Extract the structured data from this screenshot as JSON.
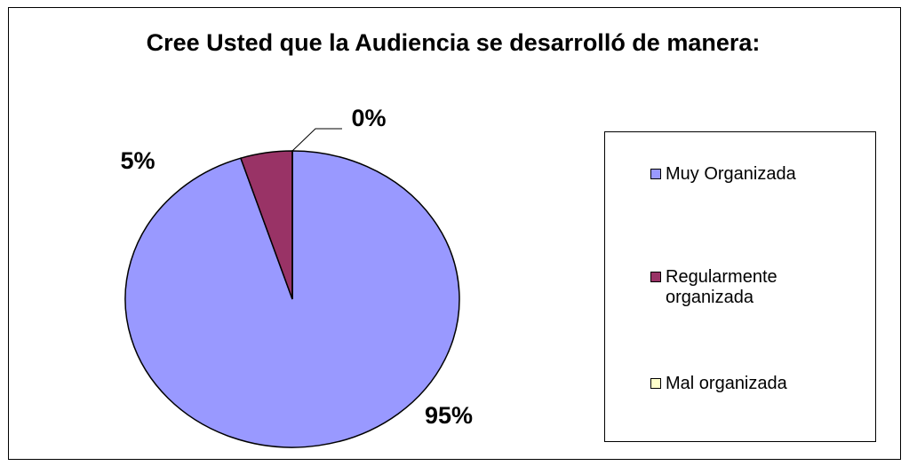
{
  "chart_data": {
    "type": "pie",
    "title": "Cree Usted que la Audiencia se desarrolló de manera:",
    "categories": [
      "Muy Organizada",
      "Regularmente organizada",
      "Mal organizada"
    ],
    "values": [
      95,
      5,
      0
    ],
    "value_labels": [
      "95%",
      "5%",
      "0%"
    ],
    "colors": [
      "#9999ff",
      "#993366",
      "#ffffcc"
    ],
    "legend": "right"
  }
}
